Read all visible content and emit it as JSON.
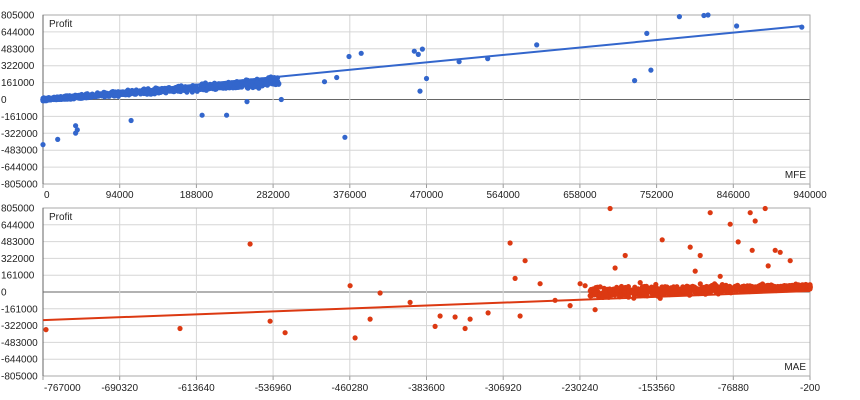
{
  "chart_data": [
    {
      "type": "scatter",
      "ylabel": "Profit",
      "xlabel": "MFE",
      "color": "#3366cc",
      "xlim": [
        0,
        940000
      ],
      "ylim": [
        -805000,
        805000
      ],
      "x_ticks": [
        0,
        94000,
        188000,
        282000,
        376000,
        470000,
        564000,
        658000,
        752000,
        846000,
        940000
      ],
      "y_ticks": [
        805000,
        644000,
        483000,
        322000,
        161000,
        0,
        -161000,
        -322000,
        -483000,
        -644000,
        -805000
      ],
      "grid": true,
      "trendline": {
        "x": [
          0,
          930000
        ],
        "y": [
          0,
          700000
        ]
      },
      "points_outliers": [
        [
          0,
          -430000
        ],
        [
          18000,
          -380000
        ],
        [
          40000,
          -320000
        ],
        [
          42000,
          -290000
        ],
        [
          40000,
          -250000
        ],
        [
          108000,
          -200000
        ],
        [
          195000,
          -150000
        ],
        [
          225000,
          -150000
        ],
        [
          250000,
          -20000
        ],
        [
          292000,
          0
        ],
        [
          345000,
          170000
        ],
        [
          360000,
          210000
        ],
        [
          375000,
          410000
        ],
        [
          370000,
          -360000
        ],
        [
          390000,
          440000
        ],
        [
          455000,
          460000
        ],
        [
          460000,
          430000
        ],
        [
          462000,
          80000
        ],
        [
          465000,
          480000
        ],
        [
          470000,
          200000
        ],
        [
          510000,
          360000
        ],
        [
          545000,
          390000
        ],
        [
          605000,
          520000
        ],
        [
          725000,
          180000
        ],
        [
          740000,
          630000
        ],
        [
          745000,
          280000
        ],
        [
          780000,
          790000
        ],
        [
          810000,
          800000
        ],
        [
          815000,
          805000
        ],
        [
          850000,
          700000
        ],
        [
          930000,
          690000
        ]
      ]
    },
    {
      "type": "scatter",
      "ylabel": "Profit",
      "xlabel": "MAE",
      "color": "#dc3912",
      "xlim": [
        -767000,
        -200
      ],
      "ylim": [
        -805000,
        805000
      ],
      "x_ticks": [
        -767000,
        -690320,
        -613640,
        -536960,
        -460280,
        -383600,
        -306920,
        -230240,
        -153560,
        -76880,
        -200
      ],
      "y_ticks": [
        805000,
        644000,
        483000,
        322000,
        161000,
        0,
        -161000,
        -322000,
        -483000,
        -644000,
        -805000
      ],
      "grid": true,
      "trendline": {
        "x": [
          -767000,
          -200
        ],
        "y": [
          -270000,
          10000
        ]
      },
      "points_outliers": [
        [
          -764000,
          -360000
        ],
        [
          -630000,
          -350000
        ],
        [
          -560000,
          460000
        ],
        [
          -540000,
          -280000
        ],
        [
          -525000,
          -390000
        ],
        [
          -460000,
          60000
        ],
        [
          -455000,
          -440000
        ],
        [
          -430000,
          -10000
        ],
        [
          -440000,
          -260000
        ],
        [
          -400000,
          -100000
        ],
        [
          -375000,
          -330000
        ],
        [
          -370000,
          -230000
        ],
        [
          -355000,
          -240000
        ],
        [
          -345000,
          -350000
        ],
        [
          -340000,
          -260000
        ],
        [
          -322000,
          -200000
        ],
        [
          -300000,
          470000
        ],
        [
          -295000,
          130000
        ],
        [
          -290000,
          -230000
        ],
        [
          -285000,
          300000
        ],
        [
          -270000,
          80000
        ],
        [
          -255000,
          -80000
        ],
        [
          -240000,
          -130000
        ],
        [
          -230000,
          80000
        ],
        [
          -225000,
          60000
        ],
        [
          -215000,
          -170000
        ],
        [
          -205000,
          10000
        ],
        [
          -200000,
          800000
        ],
        [
          -195000,
          230000
        ],
        [
          -185000,
          350000
        ],
        [
          -170000,
          90000
        ],
        [
          -150000,
          -60000
        ],
        [
          -148000,
          500000
        ],
        [
          -135000,
          10000
        ],
        [
          -120000,
          430000
        ],
        [
          -115000,
          200000
        ],
        [
          -110000,
          350000
        ],
        [
          -100000,
          760000
        ],
        [
          -90000,
          150000
        ],
        [
          -80000,
          650000
        ],
        [
          -72000,
          480000
        ],
        [
          -60000,
          760000
        ],
        [
          -58000,
          400000
        ],
        [
          -55000,
          680000
        ],
        [
          -45000,
          800000
        ],
        [
          -42000,
          250000
        ],
        [
          -35000,
          400000
        ],
        [
          -30000,
          380000
        ],
        [
          -20000,
          300000
        ]
      ]
    }
  ]
}
